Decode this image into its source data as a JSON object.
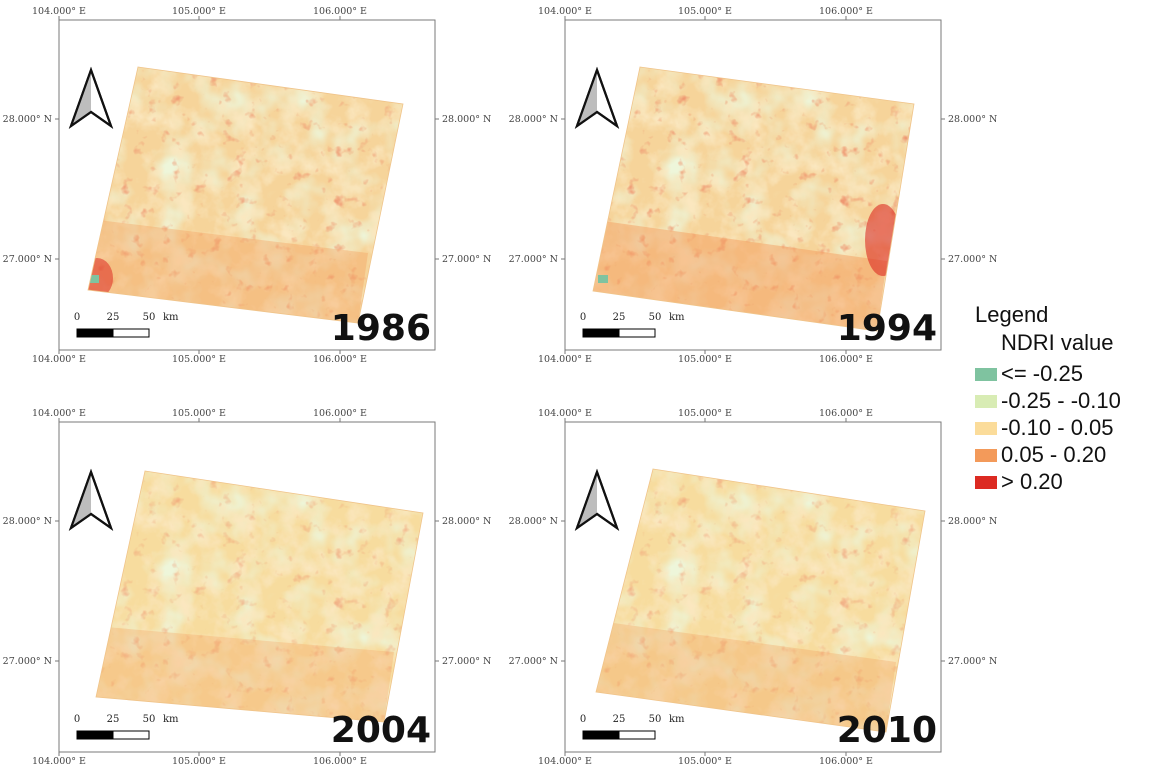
{
  "colors": {
    "class_1": "#7fc3a0",
    "class_2": "#d8ecb4",
    "class_3": "#fbdc9a",
    "class_4": "#f39a5a",
    "class_5": "#dc2a22"
  },
  "legend": {
    "title": "Legend",
    "subtitle": "NDRI value",
    "items": [
      {
        "label": "<= -0.25",
        "color": "#7fc3a0"
      },
      {
        "label": "-0.25 - -0.10",
        "color": "#d8ecb4"
      },
      {
        "label": "-0.10 - 0.05",
        "color": "#fbdc9a"
      },
      {
        "label": "0.05 - 0.20",
        "color": "#f39a5a"
      },
      {
        "label": "> 0.20",
        "color": "#dc2a22"
      }
    ]
  },
  "axes": {
    "x_ticks": [
      "104.000° E",
      "105.000° E",
      "106.000° E"
    ],
    "y_ticks": [
      "28.000° N",
      "27.000° N"
    ]
  },
  "scale_bar": {
    "labels": [
      "0",
      "25",
      "50",
      "km"
    ]
  },
  "panels": [
    {
      "year": "1986",
      "north_arrow": "north-arrow-icon"
    },
    {
      "year": "1994",
      "north_arrow": "north-arrow-icon"
    },
    {
      "year": "2004",
      "north_arrow": "north-arrow-icon"
    },
    {
      "year": "2010",
      "north_arrow": "north-arrow-icon"
    }
  ]
}
